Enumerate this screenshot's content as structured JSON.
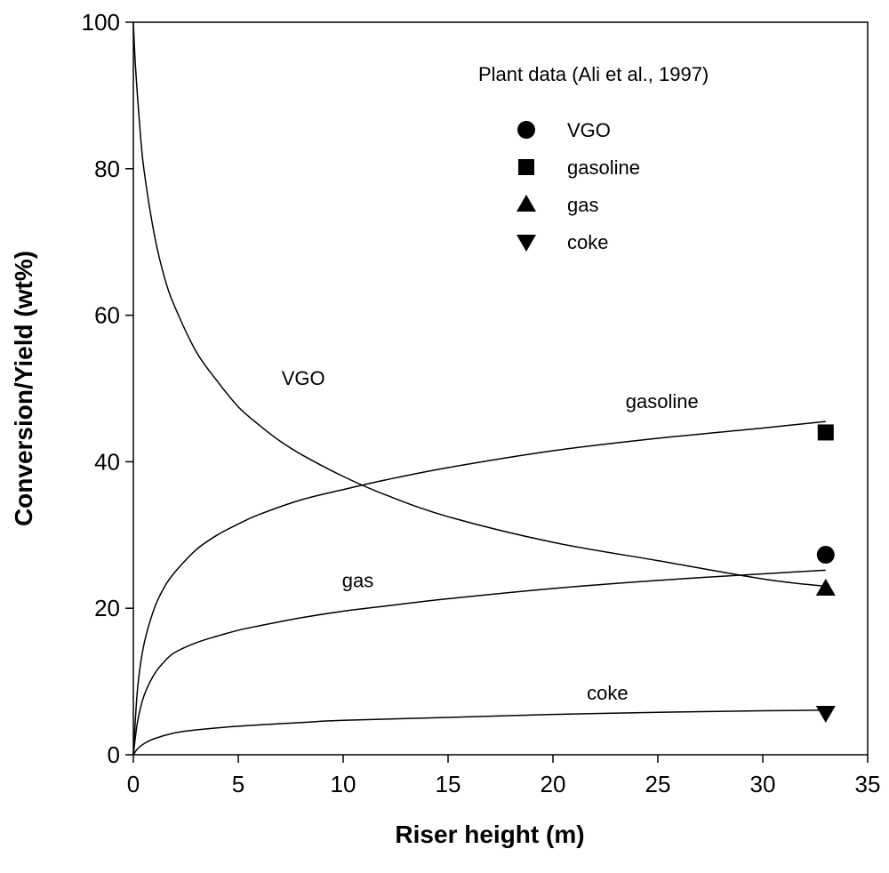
{
  "chart_data": {
    "type": "line",
    "xlabel": "Riser height (m)",
    "ylabel": "Conversion/Yield (wt%)",
    "xlim": [
      0,
      35
    ],
    "ylim": [
      0,
      100
    ],
    "x_ticks": [
      0,
      5,
      10,
      15,
      20,
      25,
      30,
      35
    ],
    "y_ticks": [
      0,
      20,
      40,
      60,
      80,
      100
    ],
    "grid": false,
    "series": [
      {
        "name": "VGO",
        "x": [
          0,
          0.1,
          0.3,
          0.5,
          1,
          1.5,
          2,
          3,
          4,
          5,
          6,
          7,
          8,
          10,
          12,
          15,
          20,
          25,
          30,
          33
        ],
        "y": [
          100,
          94,
          86,
          80,
          71,
          65,
          61,
          55,
          51,
          47.5,
          45,
          42.8,
          41,
          38,
          35.5,
          32.5,
          29,
          26.5,
          24,
          23
        ]
      },
      {
        "name": "gasoline",
        "x": [
          0,
          0.2,
          0.5,
          1,
          1.5,
          2,
          3,
          4,
          5,
          6,
          8,
          10,
          12,
          15,
          20,
          25,
          30,
          33
        ],
        "y": [
          0,
          9,
          15,
          20,
          23,
          25,
          28,
          30,
          31.5,
          32.8,
          34.8,
          36.2,
          37.5,
          39.2,
          41.5,
          43.2,
          44.6,
          45.5
        ]
      },
      {
        "name": "gas",
        "x": [
          0,
          0.2,
          0.5,
          1,
          1.5,
          2,
          3,
          4,
          5,
          6,
          8,
          10,
          12,
          15,
          20,
          25,
          30,
          33
        ],
        "y": [
          0,
          4.5,
          8,
          11,
          12.8,
          14,
          15.3,
          16.2,
          17,
          17.6,
          18.7,
          19.6,
          20.3,
          21.3,
          22.7,
          23.8,
          24.7,
          25.2
        ]
      },
      {
        "name": "coke",
        "x": [
          0,
          0.2,
          0.5,
          1,
          2,
          3,
          5,
          8,
          10,
          15,
          20,
          25,
          30,
          33
        ],
        "y": [
          0,
          0.8,
          1.5,
          2.2,
          3,
          3.4,
          3.9,
          4.4,
          4.7,
          5.1,
          5.5,
          5.8,
          6,
          6.1
        ]
      }
    ],
    "curve_labels": [
      {
        "text": "VGO",
        "x": 8.1,
        "y": 50.5
      },
      {
        "text": "gasoline",
        "x": 25.2,
        "y": 47.3
      },
      {
        "text": "gas",
        "x": 10.7,
        "y": 22.9
      },
      {
        "text": "coke",
        "x": 22.6,
        "y": 7.5
      }
    ],
    "plant_data": {
      "title": "Plant data (Ali et al., 1997)",
      "points": [
        {
          "name": "VGO",
          "marker": "circle",
          "x": 33,
          "y": 27.3
        },
        {
          "name": "gasoline",
          "marker": "square",
          "x": 33,
          "y": 44
        },
        {
          "name": "gas",
          "marker": "triangle-up",
          "x": 33,
          "y": 22.7
        },
        {
          "name": "coke",
          "marker": "triangle-down",
          "x": 33,
          "y": 5.7
        }
      ]
    },
    "legend_position": "top-right"
  }
}
